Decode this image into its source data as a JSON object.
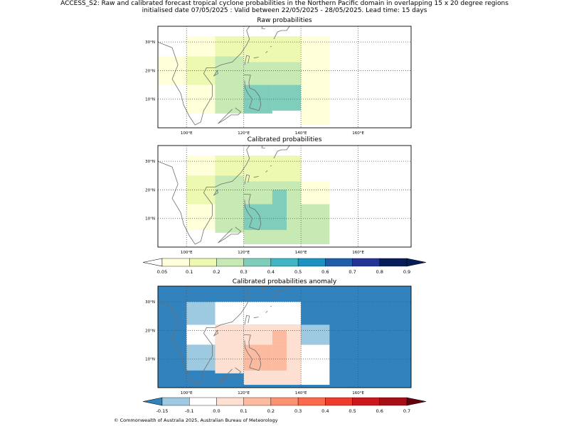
{
  "title": {
    "line1": "ACCESS_S2: Raw and calibrated forecast tropical cyclone probabilities in the Northern Pacific domain in overlapping 15 x 20 degree regions",
    "line2": "initialised date 07/05/2025 :  Valid between 22/05/2025 - 28/05/2025. Lead time: 15 days"
  },
  "panels": {
    "raw": "Raw probabilities",
    "calibrated": "Calibrated probabilities",
    "anomaly": "Calibrated probabilities anomaly"
  },
  "axis_labels": {
    "lat": [
      "30°N",
      "20°N",
      "10°N"
    ],
    "lon": [
      "100°E",
      "120°E",
      "140°E",
      "160°E"
    ]
  },
  "colorbars": {
    "probability": {
      "ticks": [
        "0.05",
        "0.1",
        "0.2",
        "0.3",
        "0.4",
        "0.5",
        "0.6",
        "0.7",
        "0.8",
        "0.9"
      ],
      "colors": [
        "#ffffd9",
        "#edf8b1",
        "#c7e9b4",
        "#7fcdbb",
        "#41b6c4",
        "#1d91c0",
        "#225ea8",
        "#253494",
        "#081d58"
      ],
      "under_color": "#ffffff",
      "over_color": "#081d58"
    },
    "anomaly": {
      "ticks": [
        "-0.15",
        "-0.1",
        "0.0",
        "0.1",
        "0.2",
        "0.3",
        "0.4",
        "0.5",
        "0.6",
        "0.7"
      ],
      "colors": [
        "#9ecae1",
        "#ffffff",
        "#fee0d2",
        "#fcbba1",
        "#fc9272",
        "#fb6a4a",
        "#ef3b2c",
        "#cb181d",
        "#a50f15"
      ],
      "under_color": "#3182bd",
      "over_color": "#67000d"
    }
  },
  "copyright": "© Commonwealth of Australia 2025, Australian Bureau of Meteorology"
}
